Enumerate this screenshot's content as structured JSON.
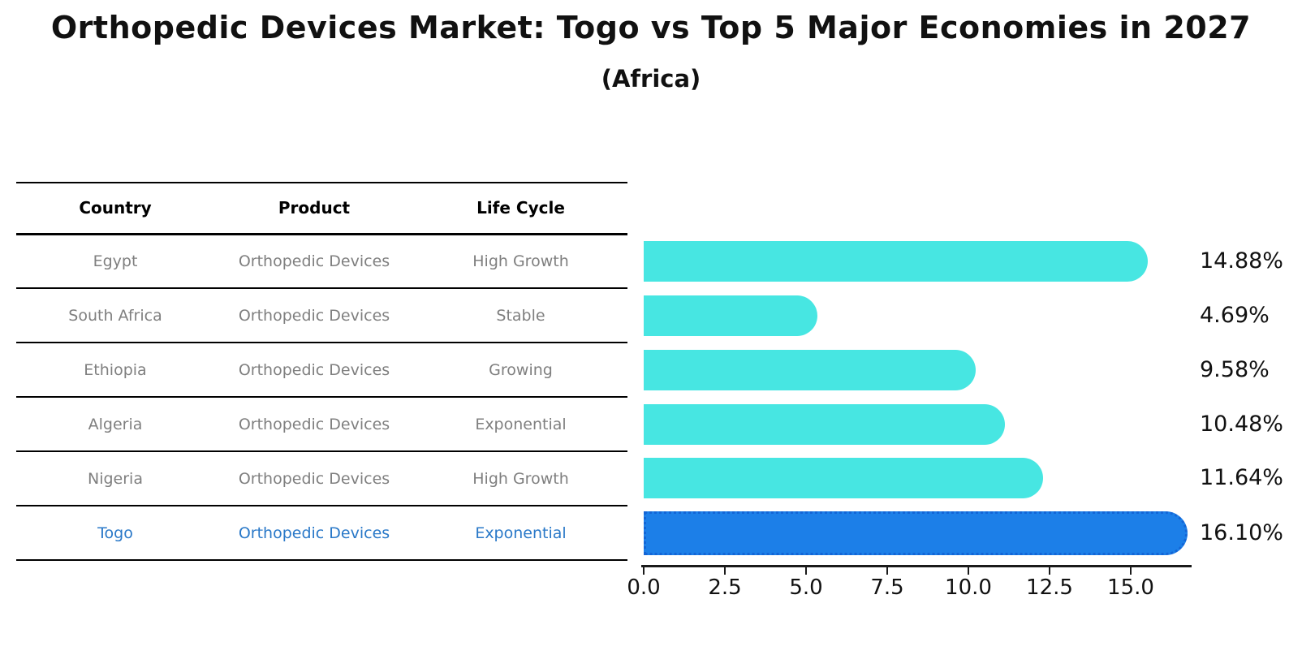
{
  "figure": {
    "title": "Orthopedic Devices Market: Togo vs Top 5 Major Economies in 2027",
    "subtitle": "(Africa)"
  },
  "table": {
    "headers": {
      "country": "Country",
      "product": "Product",
      "life_cycle": "Life Cycle"
    },
    "rows": [
      {
        "country": "Egypt",
        "product": "Orthopedic Devices",
        "life_cycle": "High Growth"
      },
      {
        "country": "South Africa",
        "product": "Orthopedic Devices",
        "life_cycle": "Stable"
      },
      {
        "country": "Ethiopia",
        "product": "Orthopedic Devices",
        "life_cycle": "Growing"
      },
      {
        "country": "Algeria",
        "product": "Orthopedic Devices",
        "life_cycle": "Exponential"
      },
      {
        "country": "Nigeria",
        "product": "Orthopedic Devices",
        "life_cycle": "High Growth"
      },
      {
        "country": "Togo",
        "product": "Orthopedic Devices",
        "life_cycle": "Exponential"
      }
    ]
  },
  "chart_data": {
    "type": "bar",
    "orientation": "horizontal",
    "title": "Orthopedic Devices Market: Togo vs Top 5 Major Economies in 2027 (Africa)",
    "categories": [
      "Egypt",
      "South Africa",
      "Ethiopia",
      "Algeria",
      "Nigeria",
      "Togo"
    ],
    "values": [
      14.88,
      4.69,
      9.58,
      10.48,
      11.64,
      16.1
    ],
    "value_labels": [
      "14.88%",
      "4.69%",
      "9.58%",
      "10.48%",
      "11.64%",
      "16.10%"
    ],
    "highlight_category": "Togo",
    "xlabel": "",
    "ylabel": "",
    "xticks": [
      0.0,
      2.5,
      5.0,
      7.5,
      10.0,
      12.5,
      15.0
    ],
    "xtick_labels": [
      "0.0",
      "2.5",
      "5.0",
      "7.5",
      "10.0",
      "12.5",
      "15.0"
    ],
    "xlim": [
      0,
      16.9
    ],
    "grid": false,
    "legend": false,
    "colors": {
      "bar_default": "#47e6e2",
      "bar_highlight": "#1c7fe8",
      "bar_highlight_border": "#1365d6",
      "table_row_text": "#7f7f7f",
      "highlight_row_text": "#2978c8",
      "text": "#111111"
    }
  }
}
